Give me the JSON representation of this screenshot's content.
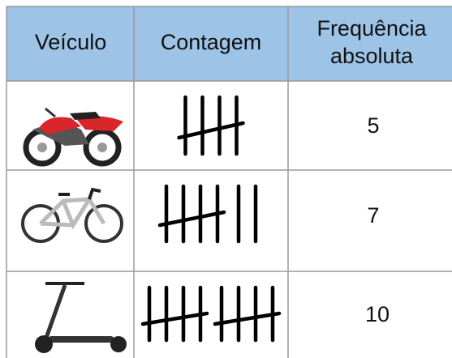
{
  "table": {
    "header": [
      "Veículo",
      "Contagem",
      "Frequência absoluta"
    ],
    "rows": [
      {
        "frequency": 5
      },
      {
        "frequency": 7
      },
      {
        "frequency": 10
      }
    ]
  }
}
